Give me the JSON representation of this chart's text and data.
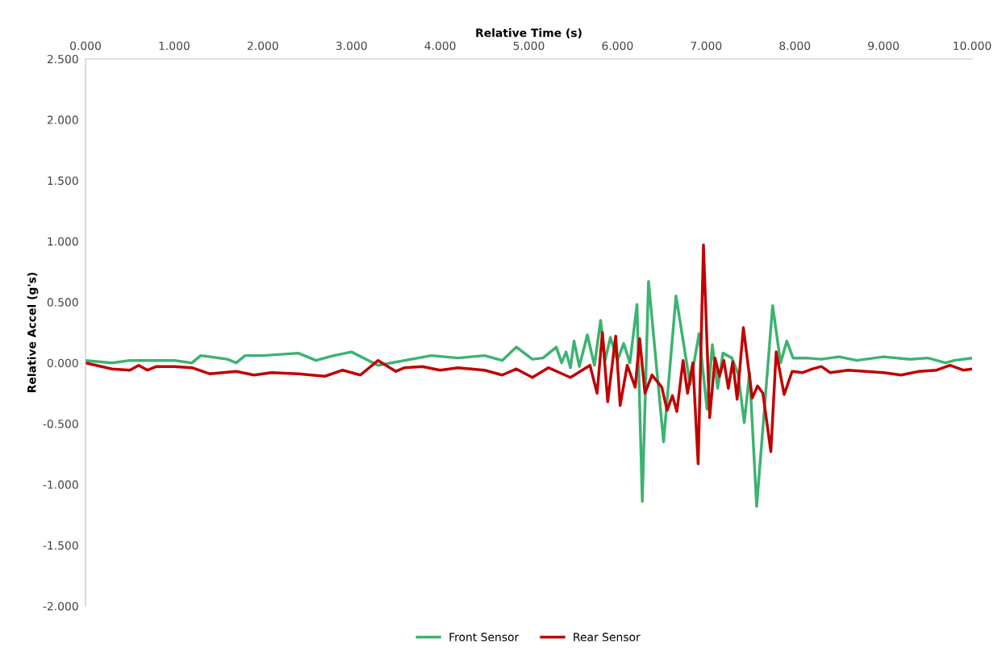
{
  "chart_data": {
    "type": "line",
    "xlabel": "Relative Time (s)",
    "ylabel": "Relative Accel (g's)",
    "xlim": [
      0,
      10
    ],
    "xticks": [
      {
        "value": 0,
        "label": "0.000"
      },
      {
        "value": 1,
        "label": "1.000"
      },
      {
        "value": 2,
        "label": "2.000"
      },
      {
        "value": 3,
        "label": "3.000"
      },
      {
        "value": 4,
        "label": "4.000"
      },
      {
        "value": 5,
        "label": "5.000"
      },
      {
        "value": 6,
        "label": "6.000"
      },
      {
        "value": 7,
        "label": "7.000"
      },
      {
        "value": 8,
        "label": "8.000"
      },
      {
        "value": 9,
        "label": "9.000"
      },
      {
        "value": 10,
        "label": "10.000"
      }
    ],
    "ylim": [
      -2,
      2.5
    ],
    "yticks": [
      {
        "value": -2,
        "label": "-2.000"
      },
      {
        "value": -1.5,
        "label": "-1.500"
      },
      {
        "value": -1,
        "label": "-1.000"
      },
      {
        "value": -0.5,
        "label": "-0.500"
      },
      {
        "value": 0,
        "label": "0.000"
      },
      {
        "value": 0.5,
        "label": "0.500"
      },
      {
        "value": 1,
        "label": "1.000"
      },
      {
        "value": 1.5,
        "label": "1.500"
      },
      {
        "value": 2,
        "label": "2.000"
      },
      {
        "value": 2.5,
        "label": "2.500"
      }
    ],
    "grid": false,
    "legend": "bottom",
    "marker": "none",
    "line_style": "solid",
    "series": [
      {
        "name": "Front Sensor",
        "color": "#3cb371",
        "x": [
          0,
          0.3,
          0.5,
          1.0,
          1.2,
          1.3,
          1.6,
          1.7,
          1.8,
          2.0,
          2.4,
          2.6,
          2.8,
          3.0,
          3.3,
          3.6,
          3.9,
          4.2,
          4.5,
          4.7,
          4.86,
          5.04,
          5.16,
          5.31,
          5.37,
          5.42,
          5.47,
          5.51,
          5.57,
          5.66,
          5.74,
          5.81,
          5.86,
          5.92,
          6.0,
          6.07,
          6.14,
          6.22,
          6.28,
          6.35,
          6.52,
          6.66,
          6.82,
          6.92,
          7.01,
          7.07,
          7.13,
          7.19,
          7.29,
          7.36,
          7.43,
          7.49,
          7.57,
          7.75,
          7.84,
          7.91,
          7.98,
          8.13,
          8.3,
          8.5,
          8.7,
          9.0,
          9.3,
          9.5,
          9.7,
          9.8,
          10
        ],
        "values": [
          0.02,
          0.0,
          0.02,
          0.02,
          0.0,
          0.06,
          0.03,
          0.0,
          0.06,
          0.06,
          0.08,
          0.02,
          0.06,
          0.09,
          -0.02,
          0.02,
          0.06,
          0.04,
          0.06,
          0.02,
          0.13,
          0.03,
          0.04,
          0.13,
          0.0,
          0.09,
          -0.04,
          0.18,
          -0.03,
          0.23,
          -0.02,
          0.35,
          0.02,
          0.21,
          0.02,
          0.16,
          0.0,
          0.48,
          -1.14,
          0.67,
          -0.65,
          0.55,
          -0.18,
          0.24,
          -0.38,
          0.15,
          -0.21,
          0.08,
          0.04,
          -0.09,
          -0.49,
          -0.08,
          -1.18,
          0.47,
          0.0,
          0.18,
          0.04,
          0.04,
          0.03,
          0.05,
          0.02,
          0.05,
          0.03,
          0.04,
          0.0,
          0.02,
          0.04
        ]
      },
      {
        "name": "Rear Sensor",
        "color": "#c00000",
        "x": [
          0,
          0.3,
          0.5,
          0.6,
          0.7,
          0.8,
          1.0,
          1.2,
          1.4,
          1.7,
          1.9,
          2.1,
          2.4,
          2.7,
          2.9,
          3.1,
          3.3,
          3.5,
          3.6,
          3.8,
          4.0,
          4.2,
          4.5,
          4.7,
          4.86,
          5.04,
          5.22,
          5.47,
          5.69,
          5.77,
          5.83,
          5.89,
          5.98,
          6.03,
          6.11,
          6.2,
          6.25,
          6.31,
          6.39,
          6.5,
          6.56,
          6.62,
          6.67,
          6.74,
          6.79,
          6.85,
          6.91,
          6.97,
          7.04,
          7.1,
          7.15,
          7.2,
          7.25,
          7.3,
          7.35,
          7.42,
          7.52,
          7.58,
          7.64,
          7.73,
          7.79,
          7.88,
          7.97,
          8.09,
          8.2,
          8.3,
          8.4,
          8.6,
          8.8,
          9.0,
          9.2,
          9.4,
          9.6,
          9.75,
          9.9,
          10
        ],
        "values": [
          0.0,
          -0.05,
          -0.06,
          -0.02,
          -0.06,
          -0.03,
          -0.03,
          -0.04,
          -0.09,
          -0.07,
          -0.1,
          -0.08,
          -0.09,
          -0.11,
          -0.06,
          -0.1,
          0.02,
          -0.07,
          -0.04,
          -0.03,
          -0.06,
          -0.04,
          -0.06,
          -0.1,
          -0.05,
          -0.12,
          -0.04,
          -0.12,
          -0.02,
          -0.25,
          0.25,
          -0.32,
          0.22,
          -0.35,
          -0.02,
          -0.2,
          0.2,
          -0.25,
          -0.1,
          -0.2,
          -0.39,
          -0.27,
          -0.4,
          0.02,
          -0.25,
          0.0,
          -0.83,
          0.97,
          -0.45,
          0.04,
          -0.11,
          0.02,
          -0.21,
          0.01,
          -0.3,
          0.29,
          -0.29,
          -0.19,
          -0.25,
          -0.73,
          0.09,
          -0.26,
          -0.07,
          -0.08,
          -0.05,
          -0.03,
          -0.08,
          -0.06,
          -0.07,
          -0.08,
          -0.1,
          -0.07,
          -0.06,
          -0.02,
          -0.06,
          -0.05
        ]
      }
    ]
  }
}
